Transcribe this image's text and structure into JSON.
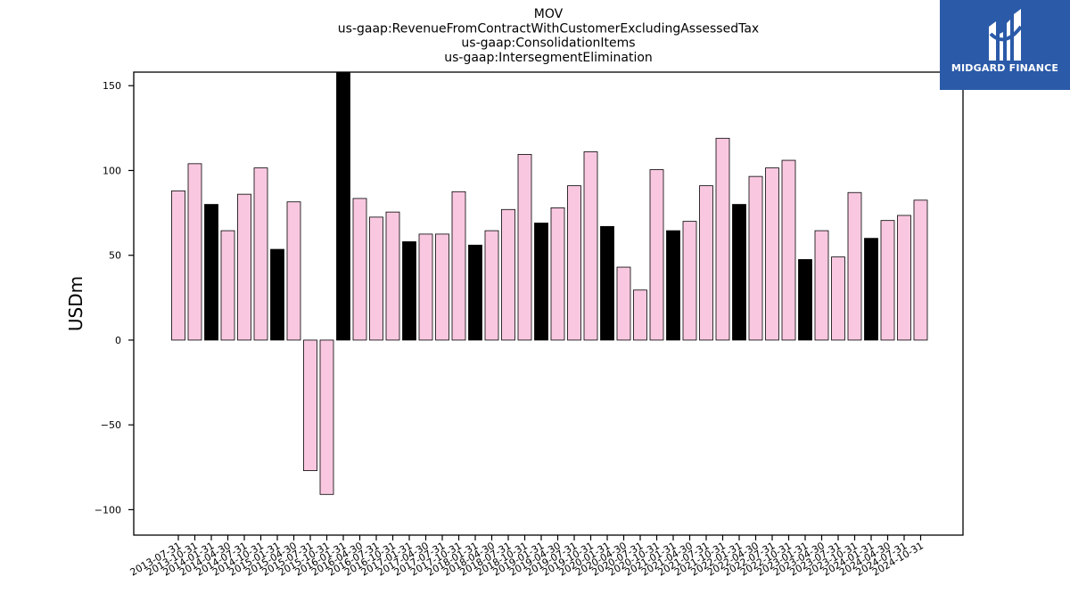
{
  "chart_data": {
    "type": "bar",
    "title_lines": [
      "MOV",
      "us-gaap:RevenueFromContractWithCustomerExcludingAssessedTax",
      "us-gaap:ConsolidationItems",
      "us-gaap:IntersegmentElimination"
    ],
    "xlabel": "",
    "ylabel": "USDm",
    "ylim": [
      -115,
      158
    ],
    "yticks": [
      -100,
      -50,
      0,
      50,
      100,
      150
    ],
    "ytick_labels": [
      "−100",
      "−50",
      "0",
      "50",
      "100",
      "150"
    ],
    "colors": {
      "quarter": "#f9c8e0",
      "annual": "#000000",
      "edge": "#000000"
    },
    "categories": [
      "2013-07-31",
      "2013-10-31",
      "2014-01-31",
      "2014-04-30",
      "2014-07-31",
      "2014-10-31",
      "2015-01-31",
      "2015-04-30",
      "2015-07-31",
      "2015-10-31",
      "2016-01-31",
      "2016-04-30",
      "2016-07-31",
      "2016-10-31",
      "2017-01-31",
      "2017-04-30",
      "2017-07-31",
      "2017-10-31",
      "2018-01-31",
      "2018-04-30",
      "2018-07-31",
      "2018-10-31",
      "2019-01-31",
      "2019-04-30",
      "2019-07-31",
      "2019-10-31",
      "2020-01-31",
      "2020-04-30",
      "2020-07-31",
      "2020-10-31",
      "2021-01-31",
      "2021-04-30",
      "2021-07-31",
      "2021-10-31",
      "2022-01-31",
      "2022-04-30",
      "2022-07-31",
      "2022-10-31",
      "2023-01-31",
      "2023-04-30",
      "2023-07-31",
      "2023-10-31",
      "2024-01-31",
      "2024-04-30",
      "2024-07-31",
      "2024-10-31"
    ],
    "values": [
      88,
      104,
      80,
      64.5,
      86,
      101.5,
      53.5,
      81.5,
      -77,
      -91,
      158,
      83.5,
      72.5,
      75.5,
      58,
      62.5,
      62.5,
      87.5,
      56,
      64.5,
      77,
      109.5,
      69,
      78,
      91,
      111,
      67,
      43,
      29.5,
      100.5,
      64.5,
      70,
      91,
      119,
      80,
      96.5,
      101.5,
      106,
      47.5,
      64.5,
      49,
      87,
      60,
      70.5,
      73.5,
      82.5
    ],
    "is_annual": [
      false,
      false,
      true,
      false,
      false,
      false,
      true,
      false,
      false,
      false,
      true,
      false,
      false,
      false,
      true,
      false,
      false,
      false,
      true,
      false,
      false,
      false,
      true,
      false,
      false,
      false,
      true,
      false,
      false,
      false,
      true,
      false,
      false,
      false,
      true,
      false,
      false,
      false,
      true,
      false,
      false,
      false,
      true,
      false,
      false,
      false
    ],
    "grid": false,
    "legend": "none"
  },
  "logo": {
    "text": "MIDGARD FINANCE"
  }
}
